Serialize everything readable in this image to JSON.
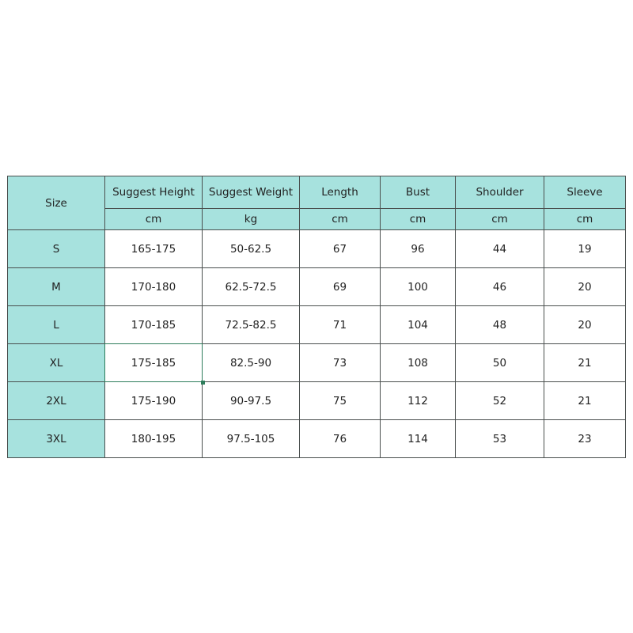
{
  "table": {
    "size_header": "Size",
    "columns": [
      {
        "label": "Suggest Height",
        "unit": "cm"
      },
      {
        "label": "Suggest Weight",
        "unit": "kg"
      },
      {
        "label": "Length",
        "unit": "cm"
      },
      {
        "label": "Bust",
        "unit": "cm"
      },
      {
        "label": "Shoulder",
        "unit": "cm"
      },
      {
        "label": "Sleeve",
        "unit": "cm"
      }
    ],
    "rows": [
      {
        "size": "S",
        "values": [
          "165-175",
          "50-62.5",
          "67",
          "96",
          "44",
          "19"
        ]
      },
      {
        "size": "M",
        "values": [
          "170-180",
          "62.5-72.5",
          "69",
          "100",
          "46",
          "20"
        ]
      },
      {
        "size": "L",
        "values": [
          "170-185",
          "72.5-82.5",
          "71",
          "104",
          "48",
          "20"
        ]
      },
      {
        "size": "XL",
        "values": [
          "175-185",
          "82.5-90",
          "73",
          "108",
          "50",
          "21"
        ]
      },
      {
        "size": "2XL",
        "values": [
          "175-190",
          "90-97.5",
          "75",
          "112",
          "52",
          "21"
        ]
      },
      {
        "size": "3XL",
        "values": [
          "180-195",
          "97.5-105",
          "76",
          "114",
          "53",
          "23"
        ]
      }
    ],
    "header_color": "#a7e2de",
    "selected_cell": "XL / Suggest Height"
  }
}
